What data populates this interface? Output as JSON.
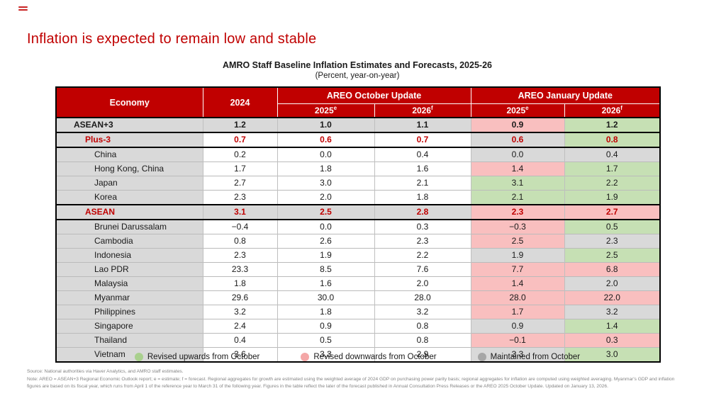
{
  "slide": {
    "heading": "Inflation is expected to remain low and stable",
    "table_title": "AMRO Staff Baseline Inflation Estimates and Forecasts, 2025-26",
    "table_subtitle": "(Percent, year-on-year)"
  },
  "colors": {
    "header_red": "#C00000",
    "revised_up_green": "#C6E0B4",
    "revised_down_pink": "#F9BFBF",
    "maintained_gray": "#D9D9D9"
  },
  "table": {
    "headers": {
      "economy": "Economy",
      "year_2024": "2024",
      "oct_group": "AREO October Update",
      "jan_group": "AREO January Update",
      "year_2025": "2025",
      "sup_e": "e",
      "year_2026": "2026",
      "sup_f": "f"
    },
    "rows": [
      {
        "economy": "ASEAN+3",
        "indent": 1,
        "bold": true,
        "red": false,
        "row_bg": "gray",
        "border_top": "dark",
        "values": [
          "1.2",
          "1.0",
          "1.1",
          "0.9",
          "1.2"
        ],
        "jan_bg": [
          "pink",
          "green"
        ]
      },
      {
        "economy": "Plus-3",
        "indent": 2,
        "bold": true,
        "red": true,
        "row_bg": "white",
        "border_top": "dark",
        "values": [
          "0.7",
          "0.6",
          "0.7",
          "0.6",
          "0.8"
        ],
        "jan_bg": [
          "gray",
          "green"
        ]
      },
      {
        "economy": "China",
        "indent": 3,
        "bold": false,
        "red": false,
        "row_bg": "white",
        "border_top": "dark",
        "values": [
          "0.2",
          "0.0",
          "0.4",
          "0.0",
          "0.4"
        ],
        "jan_bg": [
          "gray",
          "gray"
        ]
      },
      {
        "economy": "Hong Kong, China",
        "indent": 3,
        "bold": false,
        "red": false,
        "row_bg": "white",
        "border_top": "light",
        "values": [
          "1.7",
          "1.8",
          "1.6",
          "1.4",
          "1.7"
        ],
        "jan_bg": [
          "pink",
          "green"
        ]
      },
      {
        "economy": "Japan",
        "indent": 3,
        "bold": false,
        "red": false,
        "row_bg": "white",
        "border_top": "light",
        "values": [
          "2.7",
          "3.0",
          "2.1",
          "3.1",
          "2.2"
        ],
        "jan_bg": [
          "green",
          "green"
        ]
      },
      {
        "economy": "Korea",
        "indent": 3,
        "bold": false,
        "red": false,
        "row_bg": "white",
        "border_top": "light",
        "values": [
          "2.3",
          "2.0",
          "1.8",
          "2.1",
          "1.9"
        ],
        "jan_bg": [
          "green",
          "green"
        ]
      },
      {
        "economy": "ASEAN",
        "indent": 2,
        "bold": true,
        "red": true,
        "row_bg": "gray",
        "border_top": "dark",
        "values": [
          "3.1",
          "2.5",
          "2.8",
          "2.3",
          "2.7"
        ],
        "jan_bg": [
          "pink",
          "pink"
        ]
      },
      {
        "economy": "Brunei Darussalam",
        "indent": 3,
        "bold": false,
        "red": false,
        "row_bg": "white",
        "border_top": "dark",
        "values": [
          "−0.4",
          "0.0",
          "0.3",
          "−0.3",
          "0.5"
        ],
        "jan_bg": [
          "pink",
          "green"
        ]
      },
      {
        "economy": "Cambodia",
        "indent": 3,
        "bold": false,
        "red": false,
        "row_bg": "white",
        "border_top": "light",
        "values": [
          "0.8",
          "2.6",
          "2.3",
          "2.5",
          "2.3"
        ],
        "jan_bg": [
          "pink",
          "gray"
        ]
      },
      {
        "economy": "Indonesia",
        "indent": 3,
        "bold": false,
        "red": false,
        "row_bg": "white",
        "border_top": "light",
        "values": [
          "2.3",
          "1.9",
          "2.2",
          "1.9",
          "2.5"
        ],
        "jan_bg": [
          "gray",
          "green"
        ]
      },
      {
        "economy": "Lao PDR",
        "indent": 3,
        "bold": false,
        "red": false,
        "row_bg": "white",
        "border_top": "light",
        "values": [
          "23.3",
          "8.5",
          "7.6",
          "7.7",
          "6.8"
        ],
        "jan_bg": [
          "pink",
          "pink"
        ]
      },
      {
        "economy": "Malaysia",
        "indent": 3,
        "bold": false,
        "red": false,
        "row_bg": "white",
        "border_top": "light",
        "values": [
          "1.8",
          "1.6",
          "2.0",
          "1.4",
          "2.0"
        ],
        "jan_bg": [
          "pink",
          "gray"
        ]
      },
      {
        "economy": "Myanmar",
        "indent": 3,
        "bold": false,
        "red": false,
        "row_bg": "white",
        "border_top": "light",
        "values": [
          "29.6",
          "30.0",
          "28.0",
          "28.0",
          "22.0"
        ],
        "jan_bg": [
          "pink",
          "pink"
        ]
      },
      {
        "economy": "Philippines",
        "indent": 3,
        "bold": false,
        "red": false,
        "row_bg": "white",
        "border_top": "light",
        "values": [
          "3.2",
          "1.8",
          "3.2",
          "1.7",
          "3.2"
        ],
        "jan_bg": [
          "pink",
          "gray"
        ]
      },
      {
        "economy": "Singapore",
        "indent": 3,
        "bold": false,
        "red": false,
        "row_bg": "white",
        "border_top": "light",
        "values": [
          "2.4",
          "0.9",
          "0.8",
          "0.9",
          "1.4"
        ],
        "jan_bg": [
          "gray",
          "green"
        ]
      },
      {
        "economy": "Thailand",
        "indent": 3,
        "bold": false,
        "red": false,
        "row_bg": "white",
        "border_top": "light",
        "values": [
          "0.4",
          "0.5",
          "0.8",
          "−0.1",
          "0.3"
        ],
        "jan_bg": [
          "pink",
          "pink"
        ]
      },
      {
        "economy": "Vietnam",
        "indent": 3,
        "bold": false,
        "red": false,
        "row_bg": "white",
        "border_top": "light",
        "values": [
          "3.6",
          "3.3",
          "2.9",
          "3.3",
          "3.0"
        ],
        "jan_bg": [
          "gray",
          "green"
        ]
      }
    ]
  },
  "legend": {
    "items": [
      {
        "label": "Revised upwards from October",
        "color": "#A9D08E"
      },
      {
        "label": "Revised downwards from October",
        "color": "#F4A7A7"
      },
      {
        "label": "Maintained from October",
        "color": "#A6A6A6"
      }
    ]
  },
  "footer": {
    "source": "Source: National authorities via Haver Analytics, and AMRO staff estimates.",
    "note": "Note: AREO = ASEAN+3 Regional Economic Outlook report; e = estimate; f = forecast. Regional aggregates for growth are estimated using the weighted average of 2024 GDP on purchasing power parity basis; regional aggregates for inflation are computed using weighted averaging. Myanmar's GDP and inflation figures are based on its fiscal year, which runs from April 1 of the reference year to March 31 of the following year. Figures in the table reflect the later of the forecast published in Annual Consultation Press Releases or the AREO 2025 October Update. Updated on January 13, 2026."
  }
}
